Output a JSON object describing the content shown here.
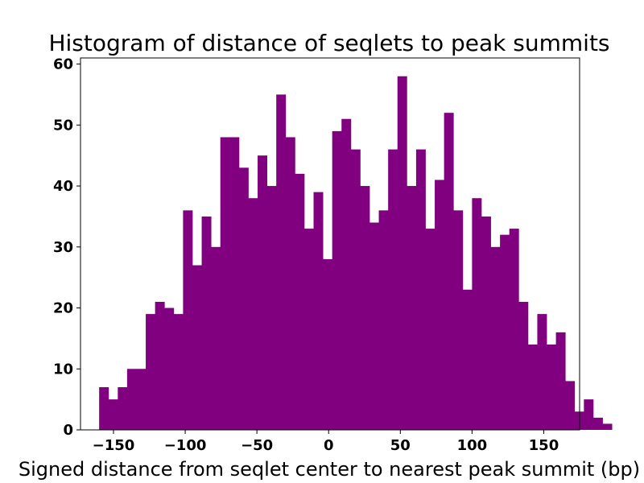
{
  "chart_data": {
    "type": "bar",
    "title": "Histogram of distance of seqlets to peak summits",
    "xlabel": "Signed distance from seqlet center to nearest peak summit (bp)",
    "ylabel": "",
    "bar_color": "#800080",
    "bin_width": 6.5,
    "bin_start": -160,
    "values": [
      7,
      5,
      7,
      10,
      10,
      19,
      21,
      20,
      19,
      36,
      27,
      35,
      30,
      48,
      48,
      43,
      38,
      45,
      40,
      55,
      48,
      42,
      33,
      39,
      28,
      49,
      51,
      46,
      40,
      34,
      36,
      46,
      58,
      40,
      46,
      33,
      41,
      52,
      36,
      23,
      38,
      35,
      30,
      32,
      33,
      21,
      14,
      19,
      14,
      16,
      8,
      3,
      5,
      2,
      1
    ],
    "xlim": [
      -173,
      175
    ],
    "ylim": [
      0,
      61
    ],
    "xticks": [
      -150,
      -100,
      -50,
      0,
      50,
      100,
      150
    ],
    "xtick_labels": [
      "−150",
      "−100",
      "−50",
      "0",
      "50",
      "100",
      "150"
    ],
    "yticks": [
      0,
      10,
      20,
      30,
      40,
      50,
      60
    ],
    "ytick_labels": [
      "0",
      "10",
      "20",
      "30",
      "40",
      "50",
      "60"
    ],
    "grid": false,
    "legend": "none"
  }
}
